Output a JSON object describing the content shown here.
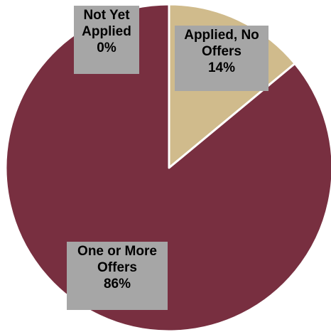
{
  "chart_data": {
    "type": "pie",
    "title": "",
    "slices": [
      {
        "label": "Not Yet Applied",
        "value": 0,
        "display": [
          "Not Yet",
          "Applied",
          "0%"
        ],
        "color": "#d0bb8c"
      },
      {
        "label": "Applied, No Offers",
        "value": 14,
        "display": [
          "Applied, No",
          "Offers",
          "14%"
        ],
        "color": "#d0bb8c"
      },
      {
        "label": "One or More Offers",
        "value": 86,
        "display": [
          "One or More",
          "Offers",
          "86%"
        ],
        "color": "#782f40"
      }
    ]
  }
}
